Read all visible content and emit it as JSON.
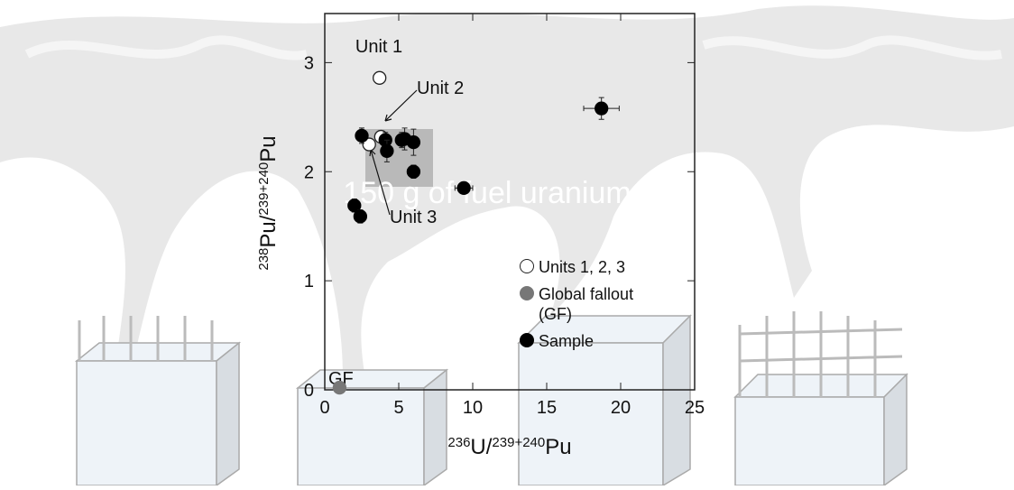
{
  "chart_data": {
    "type": "scatter",
    "x_label": [
      "236",
      "U/",
      "239+240",
      "Pu"
    ],
    "y_label": [
      "238",
      "Pu/",
      "239+240",
      "Pu"
    ],
    "xlim": [
      0,
      25
    ],
    "ylim": [
      0,
      3.45
    ],
    "xticks": [
      0,
      5,
      10,
      15,
      20,
      25
    ],
    "yticks": [
      0,
      1,
      2,
      3
    ],
    "series": [
      {
        "name": "Units 1, 2, 3",
        "color": "#ffffff",
        "x": [
          3.7,
          3.8,
          3.0
        ],
        "values": [
          2.86,
          2.32,
          2.25
        ]
      },
      {
        "name": "Global fallout (GF)",
        "color": "#777777",
        "x": [
          1.0
        ],
        "values": [
          0.02
        ]
      },
      {
        "name": "Sample",
        "color": "#000000",
        "x": [
          2.5,
          4.1,
          4.2,
          5.2,
          5.4,
          6.0,
          6.0,
          9.4,
          2.0,
          2.4,
          18.7
        ],
        "values": [
          2.33,
          2.29,
          2.19,
          2.29,
          2.3,
          2.27,
          2.0,
          1.85,
          1.69,
          1.59,
          2.58
        ],
        "xerr": [
          0.3,
          0.3,
          0.3,
          0.3,
          0.3,
          0.4,
          0.4,
          0.6,
          0.2,
          0.2,
          1.2
        ],
        "yerr": [
          0.07,
          0.07,
          0.1,
          0.07,
          0.1,
          0.12,
          0.06,
          0.05,
          0.06,
          0.06,
          0.1
        ]
      }
    ],
    "annotations": [
      "Unit 1",
      "Unit 2",
      "Unit 3",
      "GF",
      "150 g of fuel uranium"
    ]
  }
}
